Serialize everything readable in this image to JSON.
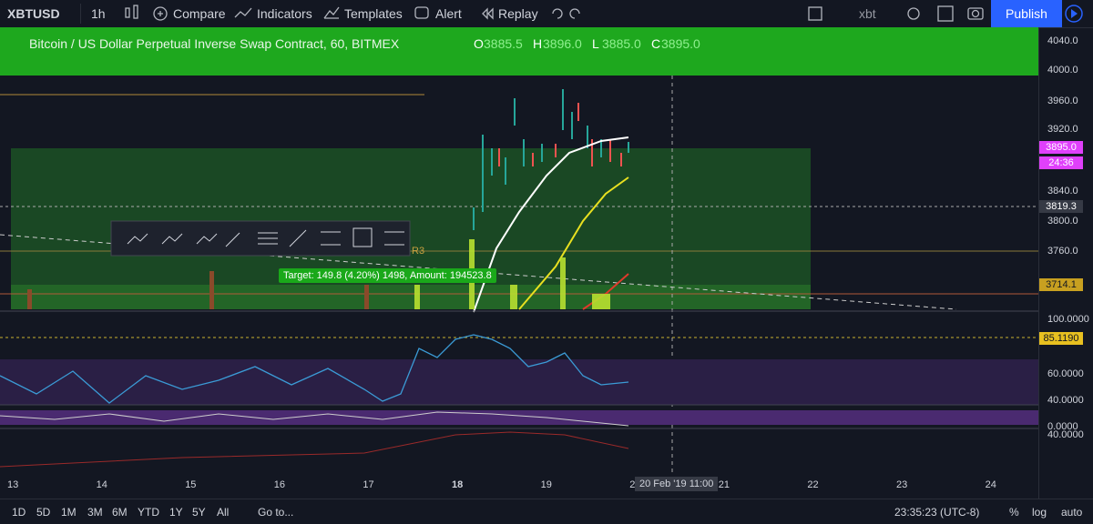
{
  "toolbar": {
    "symbol": "XBTUSD",
    "interval": "1h",
    "items": [
      "Compare",
      "Indicators",
      "Templates",
      "Alert",
      "Replay"
    ],
    "layout": "xbt",
    "publish": "Publish"
  },
  "legend": {
    "title": "Bitcoin / US Dollar Perpetual Inverse Swap Contract, 60, BITMEX",
    "ohlc": [
      {
        "k": "O",
        "v": "3885.5"
      },
      {
        "k": "H",
        "v": "3896.0"
      },
      {
        "k": "L",
        "v": "3885.0"
      },
      {
        "k": "C",
        "v": "3895.0"
      }
    ]
  },
  "price_axis": [
    "4040.0",
    "4000.0",
    "3960.0",
    "3920.0",
    "3840.0",
    "3800.0",
    "3760.0"
  ],
  "price_badges": {
    "last": "3895.0",
    "countdown": "24:36",
    "cross": "3819.3",
    "level": "3714.1"
  },
  "indicator_axis": [
    "100.0000",
    "60.0000",
    "40.0000",
    "0.0000",
    "40.0000"
  ],
  "indicator_badge": "85.1190",
  "annotations": {
    "pivot": "R3",
    "target": "Target: 149.8 (4.20%) 1498, Amount: 194523.8"
  },
  "time_axis": [
    "13",
    "14",
    "15",
    "16",
    "17",
    "18",
    "19",
    "2",
    "21",
    "22",
    "23",
    "24"
  ],
  "crosshair_time": "20 Feb '19   11:00",
  "bottom_bar": {
    "ranges": [
      "1D",
      "5D",
      "1M",
      "3M",
      "6M",
      "YTD",
      "1Y",
      "5Y",
      "All"
    ],
    "goto": "Go to...",
    "clock": "23:35:23 (UTC-8)",
    "options": [
      "%",
      "log",
      "auto"
    ]
  }
}
